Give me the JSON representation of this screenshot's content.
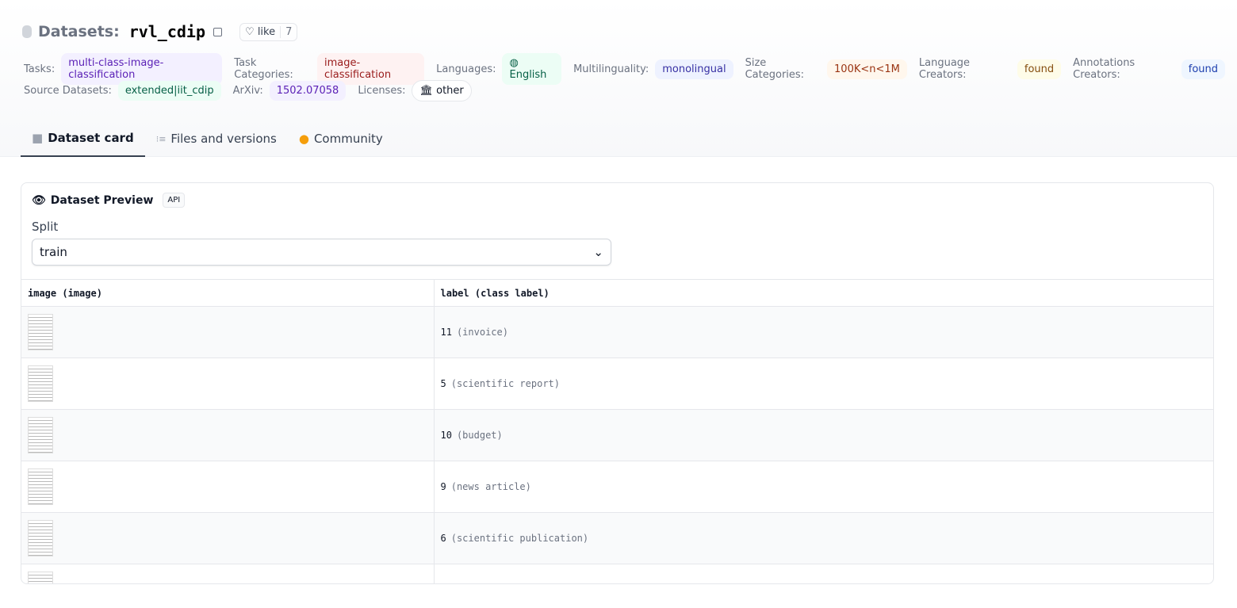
{
  "header": {
    "prefix": "Datasets:",
    "name": "rvl_cdip",
    "like_label": "like",
    "like_count": "7"
  },
  "tags_row1": [
    {
      "label": "Tasks:",
      "value": "multi-class-image-classification",
      "bg": "#f3f0ff",
      "fg": "#5b21b6"
    },
    {
      "label": "Task Categories:",
      "value": "image-classification",
      "bg": "#fef2f2",
      "fg": "#991b1b"
    },
    {
      "label": "Languages:",
      "value": "English",
      "bg": "#ecfdf5",
      "fg": "#065f46",
      "icon": "globe-icon"
    },
    {
      "label": "Multilinguality:",
      "value": "monolingual",
      "bg": "#eef2ff",
      "fg": "#3730a3"
    },
    {
      "label": "Size Categories:",
      "value": "100K<n<1M",
      "bg": "#fff7ed",
      "fg": "#9a3412"
    },
    {
      "label": "Language Creators:",
      "value": "found",
      "bg": "#fefce8",
      "fg": "#854d0e"
    },
    {
      "label": "Annotations Creators:",
      "value": "found",
      "bg": "#eff6ff",
      "fg": "#1e40af"
    }
  ],
  "tags_row2": [
    {
      "label": "Source Datasets:",
      "value": "extended|iit_cdip",
      "bg": "#ecfdf5",
      "fg": "#065f46"
    },
    {
      "label": "ArXiv:",
      "value": "1502.07058",
      "bg": "#f3f0ff",
      "fg": "#5b21b6"
    },
    {
      "label": "Licenses:",
      "value": "other",
      "bg": "#fff",
      "fg": "#111827",
      "icon": "bank-icon"
    }
  ],
  "tabs": [
    {
      "label": "Dataset card",
      "icon": "cube-icon"
    },
    {
      "label": "Files and versions",
      "icon": "files-icon"
    },
    {
      "label": "Community",
      "icon": "hand-icon"
    }
  ],
  "preview": {
    "title": "Dataset Preview",
    "api": "API",
    "split_label": "Split",
    "split_value": "train",
    "columns": [
      "image (image)",
      "label (class label)"
    ],
    "rows": [
      {
        "id": "11",
        "cls": "(invoice)"
      },
      {
        "id": "5",
        "cls": "(scientific report)"
      },
      {
        "id": "10",
        "cls": "(budget)"
      },
      {
        "id": "9",
        "cls": "(news article)"
      },
      {
        "id": "6",
        "cls": "(scientific publication)"
      },
      {
        "id": "",
        "cls": ""
      }
    ]
  }
}
